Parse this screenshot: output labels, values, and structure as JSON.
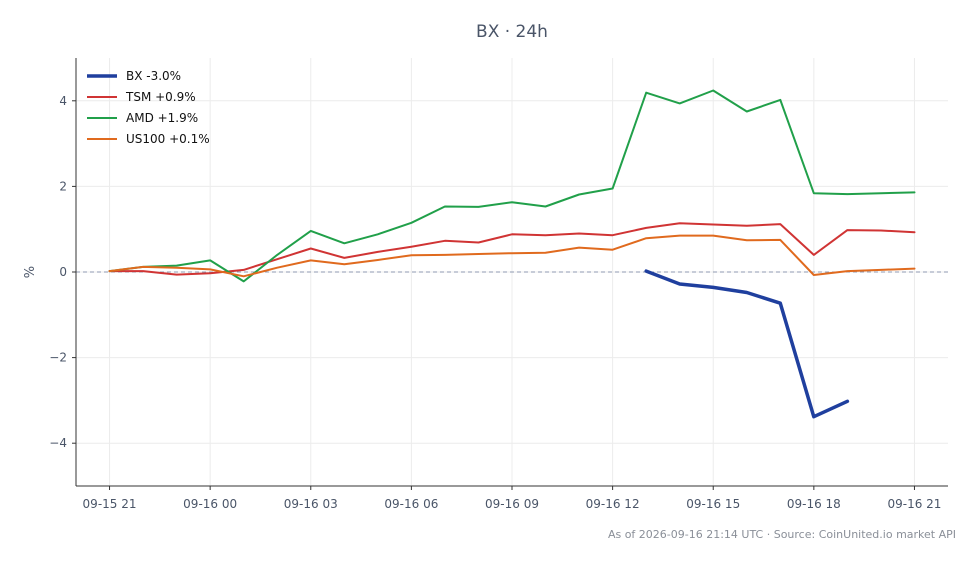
{
  "chart_data": {
    "type": "line",
    "title": "BX · 24h",
    "xlabel": "",
    "ylabel": "%",
    "ylim": [
      -5,
      5
    ],
    "y_ticks": [
      -4,
      -2,
      0,
      2,
      4
    ],
    "y_tick_labels": [
      "−4",
      "−2",
      "0",
      "2",
      "4"
    ],
    "x_ticks": [
      0,
      3,
      6,
      9,
      12,
      15,
      18,
      21,
      24
    ],
    "x_tick_labels": [
      "09-15 21",
      "09-16 00",
      "09-16 03",
      "09-16 06",
      "09-16 09",
      "09-16 12",
      "09-16 15",
      "09-16 18",
      "09-16 21"
    ],
    "xlim": [
      -1,
      25
    ],
    "grid": true,
    "legend_position": "top-left",
    "zero_line": true,
    "x": [
      0,
      1,
      2,
      3,
      4,
      5,
      6,
      7,
      8,
      9,
      10,
      11,
      12,
      13,
      14,
      15,
      16,
      17,
      18,
      19,
      20,
      21,
      22,
      23,
      24
    ],
    "series": [
      {
        "name": "BX -3.0%",
        "color": "#1f3f9e",
        "width": 3.5,
        "x": [
          16,
          17,
          18,
          19,
          20,
          21,
          22
        ],
        "values": [
          0.02,
          -0.28,
          -0.36,
          -0.48,
          -0.73,
          -3.38,
          -3.02
        ]
      },
      {
        "name": "TSM +0.9%",
        "color": "#d03434",
        "width": 2,
        "x": [
          0,
          1,
          2,
          3,
          4,
          5,
          6,
          7,
          8,
          9,
          10,
          11,
          12,
          13,
          14,
          15,
          16,
          17,
          18,
          19,
          20,
          21,
          22,
          23,
          24
        ],
        "values": [
          0.02,
          0.02,
          -0.06,
          -0.03,
          0.05,
          0.3,
          0.55,
          0.33,
          0.47,
          0.59,
          0.73,
          0.69,
          0.88,
          0.86,
          0.9,
          0.86,
          1.03,
          1.14,
          1.11,
          1.08,
          1.12,
          0.4,
          0.98,
          0.97,
          0.93
        ]
      },
      {
        "name": "AMD +1.9%",
        "color": "#21a04a",
        "width": 2,
        "x": [
          0,
          1,
          2,
          3,
          4,
          5,
          6,
          7,
          8,
          9,
          10,
          11,
          12,
          13,
          14,
          15,
          16,
          17,
          18,
          19,
          20,
          21,
          22,
          23,
          24
        ],
        "values": [
          0.02,
          0.12,
          0.15,
          0.27,
          -0.22,
          0.4,
          0.96,
          0.67,
          0.88,
          1.15,
          1.53,
          1.52,
          1.63,
          1.53,
          1.81,
          1.95,
          4.19,
          3.94,
          4.24,
          3.75,
          4.02,
          1.84,
          1.82,
          1.84,
          1.86
        ]
      },
      {
        "name": "US100 +0.1%",
        "color": "#e06a1e",
        "width": 2,
        "x": [
          0,
          1,
          2,
          3,
          4,
          5,
          6,
          7,
          8,
          9,
          10,
          11,
          12,
          13,
          14,
          15,
          16,
          17,
          18,
          19,
          20,
          21,
          22,
          23,
          24
        ],
        "values": [
          0.02,
          0.12,
          0.1,
          0.06,
          -0.1,
          0.1,
          0.27,
          0.18,
          0.28,
          0.39,
          0.4,
          0.42,
          0.44,
          0.45,
          0.57,
          0.52,
          0.79,
          0.85,
          0.85,
          0.74,
          0.75,
          -0.07,
          0.02,
          0.05,
          0.08
        ]
      }
    ]
  },
  "footer": {
    "caption": "As of 2026-09-16 21:14 UTC · Source: CoinUnited.io market API"
  },
  "colors": {
    "axis": "#333333",
    "grid": "#ececec",
    "zero_line": "#8f9ab0"
  }
}
